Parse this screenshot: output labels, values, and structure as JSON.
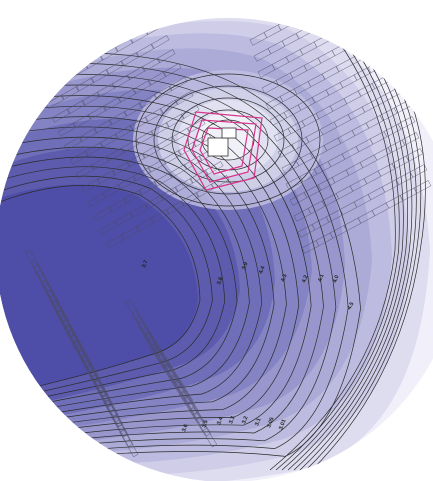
{
  "map": {
    "colors": {
      "background": "#ffffff",
      "band_light": "#f1f0fa",
      "band_dark": "#4a4aa6",
      "contour_line": "#2b2b2b",
      "building_outline": "#4d4d66",
      "highlight": "#d8338a"
    },
    "contour_labels": [
      "4.5",
      "4.4",
      "4.3",
      "4.2",
      "4.1",
      "4.0",
      "3.9",
      "3.8",
      "3.7",
      "3.6",
      "3.5",
      "3.4",
      "3.3",
      "3.2",
      "3.1",
      "3.05",
      "3.01"
    ]
  }
}
